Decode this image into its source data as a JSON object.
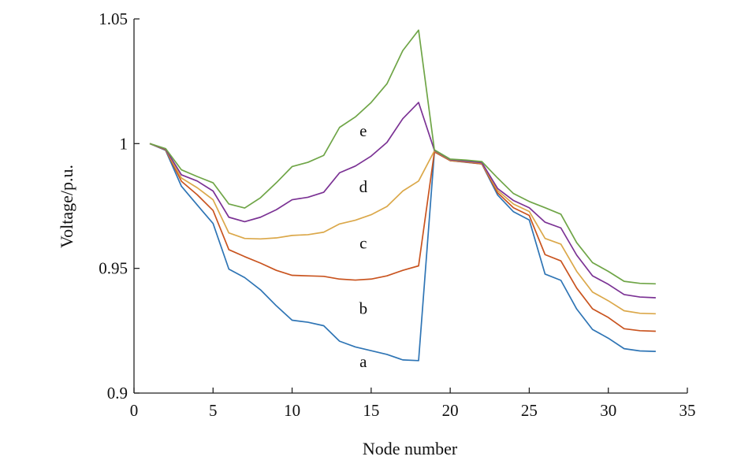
{
  "chart_data": {
    "type": "line",
    "title": "",
    "xlabel": "Node number",
    "ylabel": "Voltage/p.u.",
    "xlim": [
      0,
      35
    ],
    "ylim": [
      0.9,
      1.05
    ],
    "xticks": [
      0,
      5,
      10,
      15,
      20,
      25,
      30,
      35
    ],
    "xtick_labels": [
      "0",
      "5",
      "10",
      "15",
      "20",
      "25",
      "30",
      "35"
    ],
    "yticks": [
      0.9,
      0.95,
      1.0,
      1.05
    ],
    "ytick_labels": [
      "0.9",
      "0.95",
      "1",
      "1.05"
    ],
    "grid": false,
    "legend": "none",
    "x": [
      1,
      2,
      3,
      4,
      5,
      6,
      7,
      8,
      9,
      10,
      11,
      12,
      13,
      14,
      15,
      16,
      17,
      18,
      19,
      20,
      21,
      22,
      23,
      24,
      25,
      26,
      27,
      28,
      29,
      30,
      31,
      32,
      33
    ],
    "series": [
      {
        "label": "a",
        "color": "#2f75b5",
        "values": [
          1.0,
          0.9973,
          0.9829,
          0.9754,
          0.968,
          0.9497,
          0.9463,
          0.9414,
          0.935,
          0.9292,
          0.9284,
          0.927,
          0.9208,
          0.9185,
          0.917,
          0.9155,
          0.9133,
          0.913,
          0.9967,
          0.9932,
          0.9925,
          0.9919,
          0.9794,
          0.9727,
          0.9694,
          0.9477,
          0.9452,
          0.9337,
          0.9255,
          0.922,
          0.9178,
          0.9169,
          0.9167
        ]
      },
      {
        "label": "b",
        "color": "#c9541f",
        "values": [
          1.0,
          0.9975,
          0.9849,
          0.9795,
          0.9732,
          0.9575,
          0.9547,
          0.9521,
          0.9492,
          0.9472,
          0.947,
          0.9468,
          0.9457,
          0.9453,
          0.9457,
          0.947,
          0.9492,
          0.951,
          0.9967,
          0.9932,
          0.9926,
          0.9919,
          0.9803,
          0.9743,
          0.9712,
          0.9555,
          0.953,
          0.9421,
          0.9338,
          0.9303,
          0.9258,
          0.925,
          0.9248
        ]
      },
      {
        "label": "c",
        "color": "#dba84a",
        "values": [
          1.0,
          0.9977,
          0.9862,
          0.9823,
          0.9775,
          0.9642,
          0.962,
          0.9618,
          0.9622,
          0.9632,
          0.9635,
          0.9645,
          0.9678,
          0.9693,
          0.9715,
          0.9748,
          0.981,
          0.985,
          0.9971,
          0.9934,
          0.9928,
          0.9922,
          0.9812,
          0.9758,
          0.9728,
          0.962,
          0.9597,
          0.9488,
          0.9405,
          0.937,
          0.933,
          0.932,
          0.9318
        ]
      },
      {
        "label": "d",
        "color": "#7b3294",
        "values": [
          1.0,
          0.9978,
          0.9875,
          0.985,
          0.981,
          0.9705,
          0.9687,
          0.9705,
          0.9735,
          0.9775,
          0.9785,
          0.9805,
          0.9883,
          0.991,
          0.995,
          1.0005,
          1.01,
          1.0165,
          0.9973,
          0.9936,
          0.993,
          0.9924,
          0.982,
          0.9772,
          0.9743,
          0.9685,
          0.9662,
          0.9553,
          0.947,
          0.9436,
          0.9395,
          0.9385,
          0.9382
        ]
      },
      {
        "label": "e",
        "color": "#6fa547",
        "values": [
          1.0,
          0.998,
          0.9895,
          0.9868,
          0.9843,
          0.9758,
          0.9742,
          0.9783,
          0.9843,
          0.9908,
          0.9925,
          0.9953,
          1.0065,
          1.0107,
          1.0165,
          1.024,
          1.0373,
          1.0455,
          0.9975,
          0.9938,
          0.9934,
          0.9928,
          0.9862,
          0.98,
          0.9768,
          0.9743,
          0.9717,
          0.9603,
          0.9523,
          0.9488,
          0.9448,
          0.944,
          0.9438
        ]
      }
    ],
    "annotations": [
      {
        "text": "e",
        "x": 14.5,
        "y": 1.003
      },
      {
        "text": "d",
        "x": 14.5,
        "y": 0.9805
      },
      {
        "text": "c",
        "x": 14.5,
        "y": 0.958
      },
      {
        "text": "b",
        "x": 14.5,
        "y": 0.9318
      },
      {
        "text": "a",
        "x": 14.5,
        "y": 0.9105
      }
    ]
  }
}
